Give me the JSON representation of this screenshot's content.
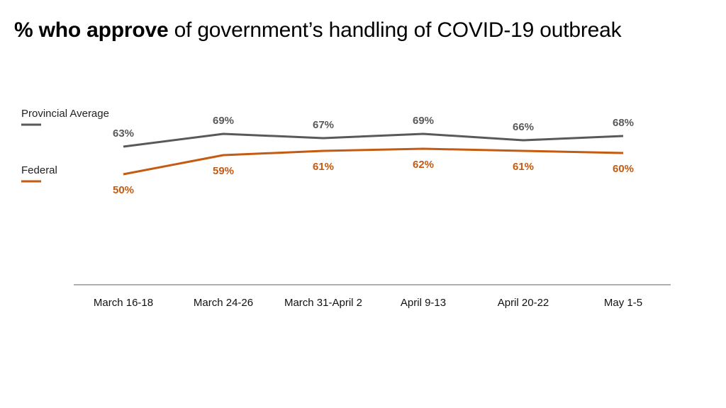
{
  "title": {
    "bold": "% who approve",
    "rest": " of government’s handling of COVID-19 outbreak"
  },
  "colors": {
    "provincial": "#595959",
    "federal": "#C55A11",
    "axis": "#7f7f7f"
  },
  "chart_data": {
    "type": "line",
    "title": "% who approve of government’s handling of COVID-19 outbreak",
    "categories": [
      "March 16-18",
      "March 24-26",
      "March 31-April 2",
      "April 9-13",
      "April 20-22",
      "May 1-5"
    ],
    "series": [
      {
        "name": "Provincial Average",
        "values": [
          63,
          69,
          67,
          69,
          66,
          68
        ],
        "labels": [
          "63%",
          "69%",
          "67%",
          "69%",
          "66%",
          "68%"
        ]
      },
      {
        "name": "Federal",
        "values": [
          50,
          59,
          61,
          62,
          61,
          60
        ],
        "labels": [
          "50%",
          "59%",
          "61%",
          "62%",
          "61%",
          "60%"
        ]
      }
    ],
    "legend": "left",
    "grid": false,
    "ylim": [
      0,
      80
    ]
  }
}
